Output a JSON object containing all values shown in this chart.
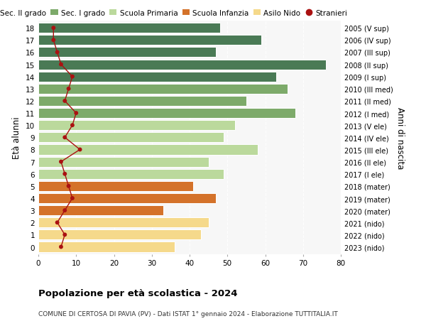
{
  "ages": [
    18,
    17,
    16,
    15,
    14,
    13,
    12,
    11,
    10,
    9,
    8,
    7,
    6,
    5,
    4,
    3,
    2,
    1,
    0
  ],
  "bar_values": [
    48,
    59,
    47,
    76,
    63,
    66,
    55,
    68,
    52,
    49,
    58,
    45,
    49,
    41,
    47,
    33,
    45,
    43,
    36
  ],
  "stranieri": [
    4,
    4,
    5,
    6,
    9,
    8,
    7,
    10,
    9,
    7,
    11,
    6,
    7,
    8,
    9,
    7,
    5,
    7,
    6
  ],
  "right_labels": [
    "2005 (V sup)",
    "2006 (IV sup)",
    "2007 (III sup)",
    "2008 (II sup)",
    "2009 (I sup)",
    "2010 (III med)",
    "2011 (II med)",
    "2012 (I med)",
    "2013 (V ele)",
    "2014 (IV ele)",
    "2015 (III ele)",
    "2016 (II ele)",
    "2017 (I ele)",
    "2018 (mater)",
    "2019 (mater)",
    "2020 (mater)",
    "2021 (nido)",
    "2022 (nido)",
    "2023 (nido)"
  ],
  "bar_colors": {
    "sec2": "#4a7a55",
    "sec1": "#7daa6a",
    "primaria": "#bbd99c",
    "infanzia": "#d4722a",
    "nido": "#f5d98b"
  },
  "category_ranges": {
    "sec2": [
      14,
      18
    ],
    "sec1": [
      11,
      13
    ],
    "primaria": [
      6,
      10
    ],
    "infanzia": [
      3,
      5
    ],
    "nido": [
      0,
      2
    ]
  },
  "stranieri_color": "#aa1111",
  "title": "Popolazione per età scolastica - 2024",
  "subtitle": "COMUNE DI CERTOSA DI PAVIA (PV) - Dati ISTAT 1° gennaio 2024 - Elaborazione TUTTITALIA.IT",
  "ylabel": "Età alunni",
  "ylabel2": "Anni di nascita",
  "xlim": [
    0,
    80
  ],
  "xticks": [
    0,
    10,
    20,
    30,
    40,
    50,
    60,
    70,
    80
  ],
  "legend_labels": [
    "Sec. II grado",
    "Sec. I grado",
    "Scuola Primaria",
    "Scuola Infanzia",
    "Asilo Nido",
    "Stranieri"
  ],
  "bg_color": "#f7f7f7",
  "fig_bg": "#ffffff"
}
